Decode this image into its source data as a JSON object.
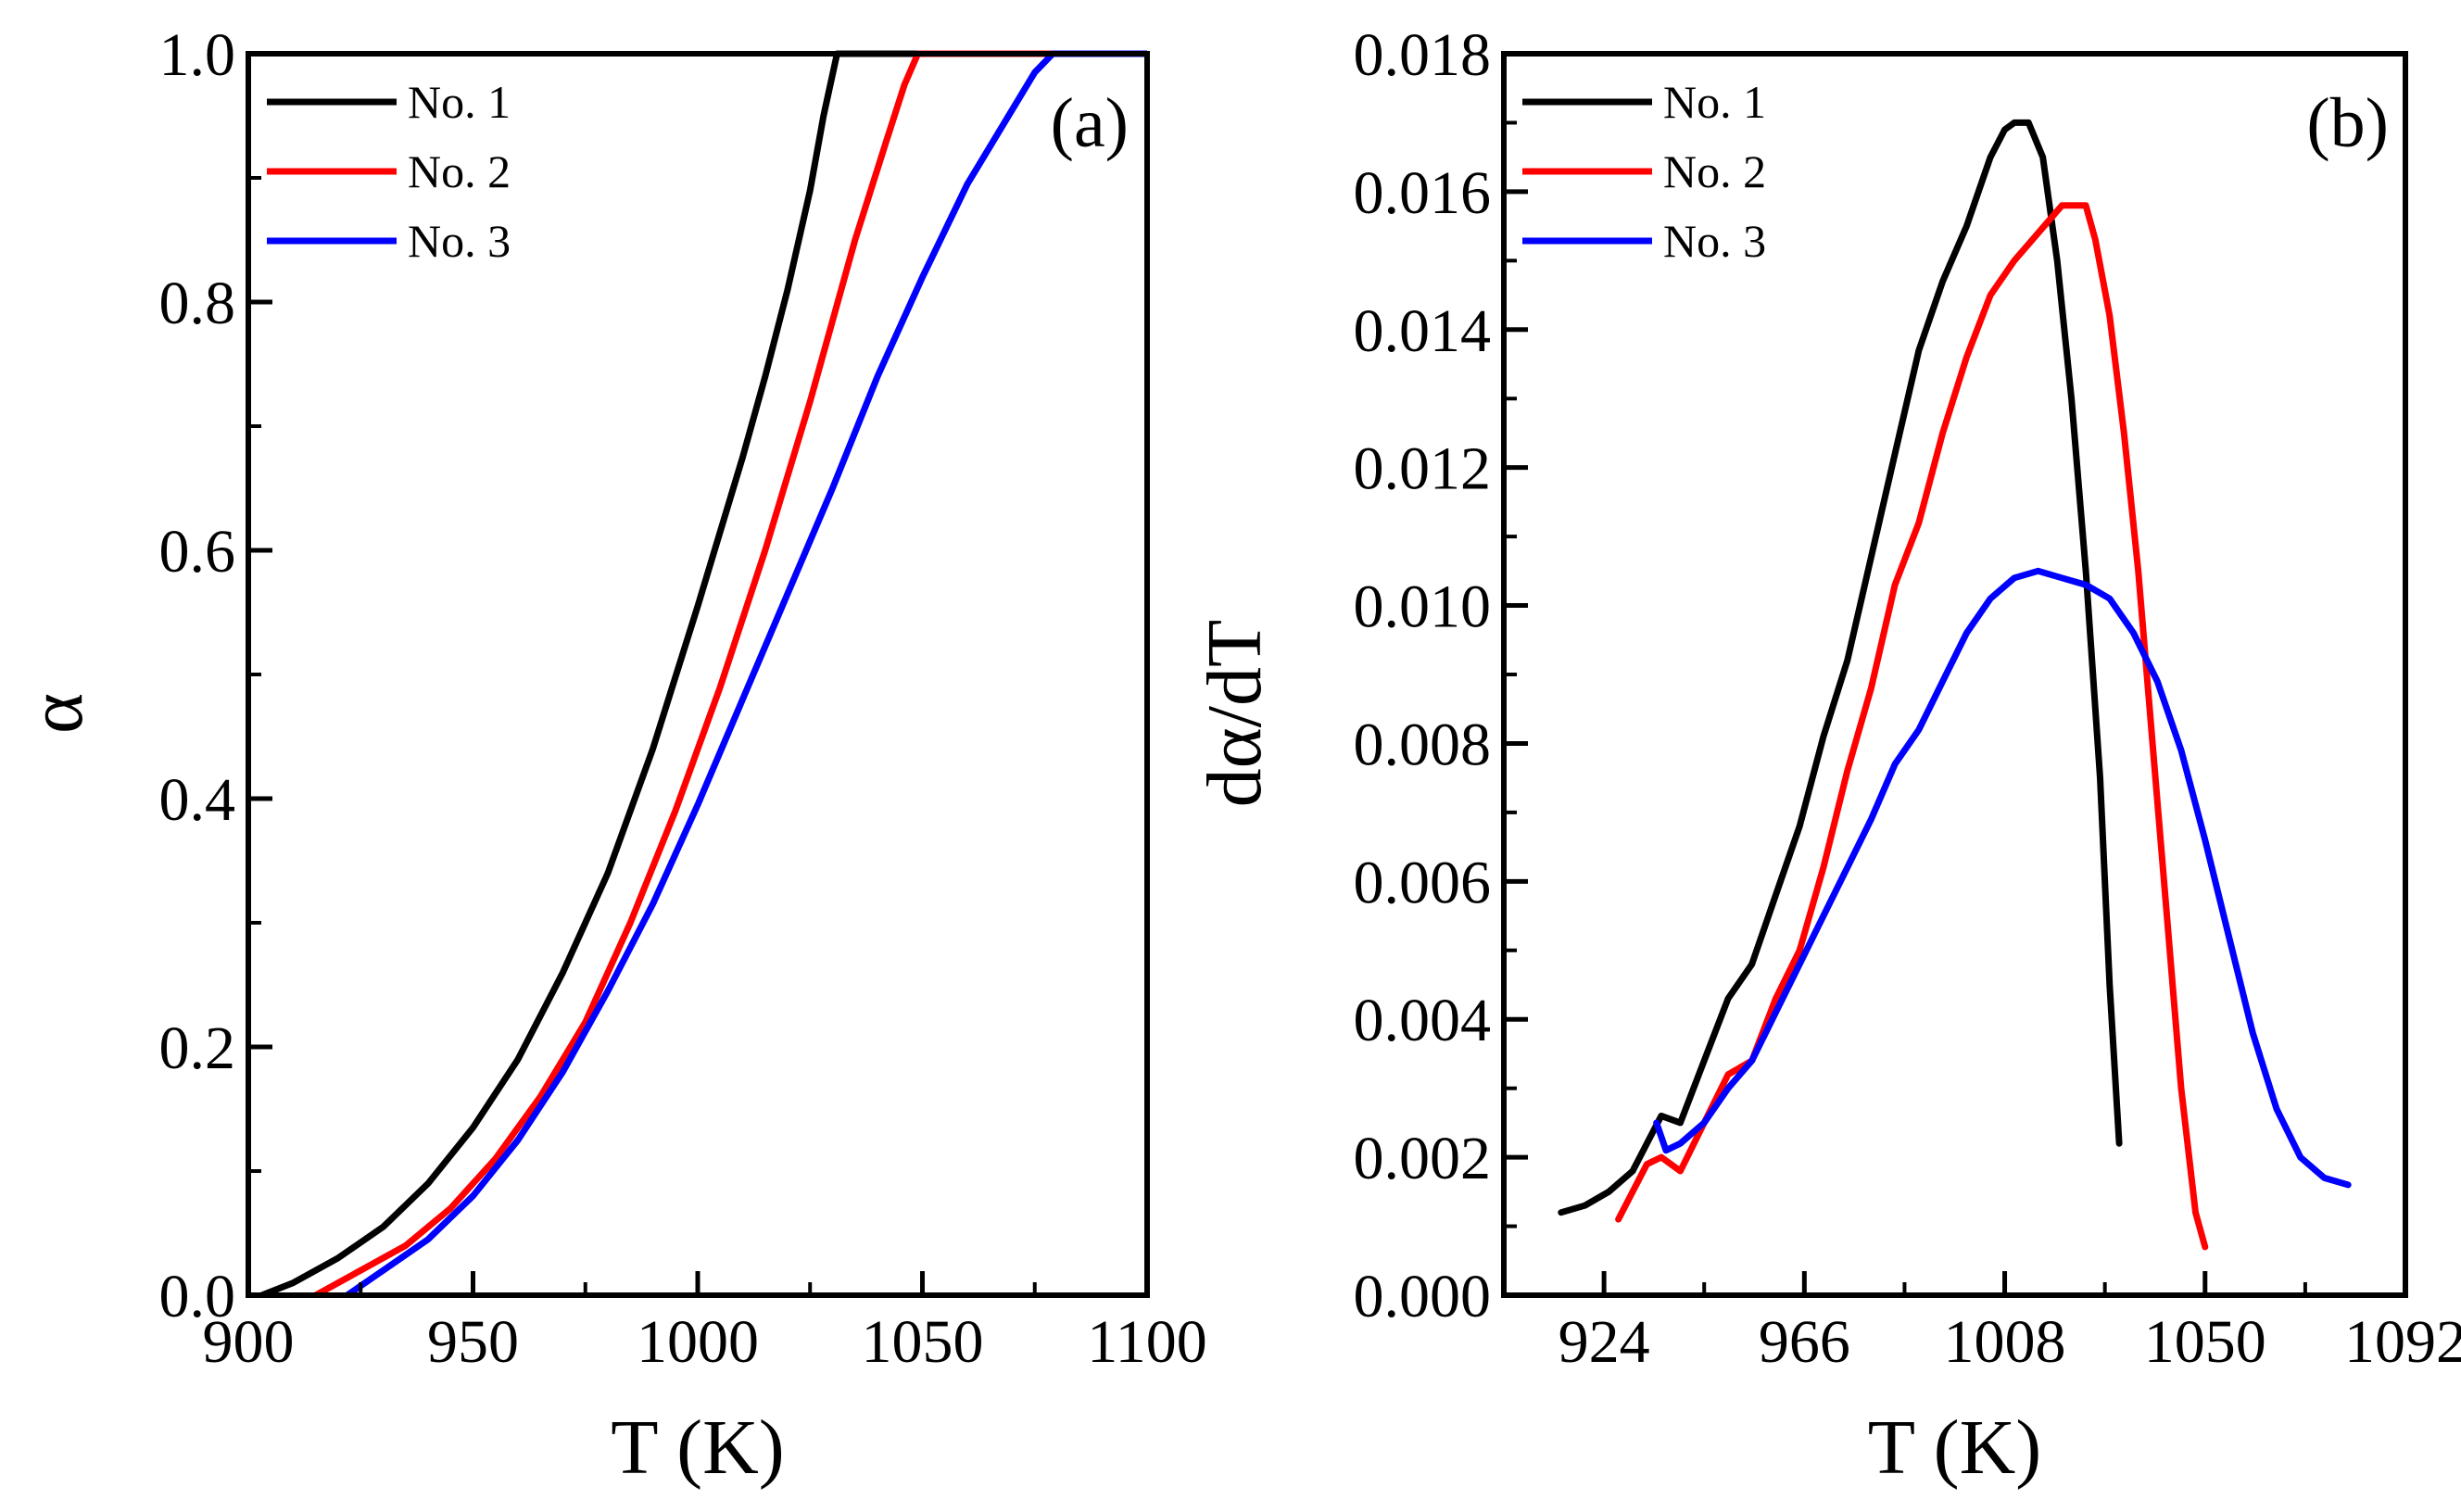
{
  "chart_data": [
    {
      "type": "line",
      "panel": "(a)",
      "xlabel": "T (K)",
      "ylabel": "α",
      "xlim": [
        900,
        1100
      ],
      "ylim": [
        0,
        1.0
      ],
      "xticks": [
        900,
        950,
        1000,
        1050,
        1100
      ],
      "xtick_labels": [
        "900",
        "950",
        "1000",
        "1050",
        "1100"
      ],
      "yticks": [
        0,
        0.2,
        0.4,
        0.6,
        0.8,
        1.0
      ],
      "ytick_labels": [
        "0.0",
        "0.2",
        "0.4",
        "0.6",
        "0.8",
        "1.0"
      ],
      "legend_position": "top-left",
      "series": [
        {
          "name": "No. 1",
          "color": "#000000",
          "x": [
            903,
            910,
            920,
            930,
            940,
            950,
            960,
            970,
            980,
            990,
            1000,
            1010,
            1015,
            1020,
            1025,
            1028,
            1031,
            1100
          ],
          "y": [
            0,
            0.01,
            0.03,
            0.055,
            0.09,
            0.135,
            0.19,
            0.26,
            0.34,
            0.44,
            0.555,
            0.675,
            0.74,
            0.81,
            0.89,
            0.95,
            1.0,
            1.0
          ]
        },
        {
          "name": "No. 2",
          "color": "#ff0000",
          "x": [
            915,
            925,
            935,
            945,
            955,
            965,
            975,
            985,
            995,
            1005,
            1015,
            1025,
            1035,
            1042,
            1046,
            1049,
            1100
          ],
          "y": [
            0,
            0.02,
            0.04,
            0.07,
            0.11,
            0.16,
            0.22,
            0.3,
            0.39,
            0.49,
            0.6,
            0.72,
            0.85,
            0.93,
            0.975,
            1.0,
            1.0
          ]
        },
        {
          "name": "No. 3",
          "color": "#0000ff",
          "x": [
            922,
            930,
            940,
            950,
            960,
            970,
            980,
            990,
            1000,
            1010,
            1020,
            1030,
            1040,
            1050,
            1060,
            1070,
            1075,
            1079,
            1100
          ],
          "y": [
            0,
            0.02,
            0.045,
            0.08,
            0.125,
            0.18,
            0.245,
            0.315,
            0.395,
            0.48,
            0.565,
            0.65,
            0.74,
            0.82,
            0.895,
            0.955,
            0.985,
            1.0,
            1.0
          ]
        }
      ]
    },
    {
      "type": "line",
      "panel": "(b)",
      "xlabel": "T (K)",
      "ylabel": "dα/dT",
      "xlim": [
        903,
        1092
      ],
      "ylim": [
        0,
        0.018
      ],
      "xticks": [
        924,
        966,
        1008,
        1050,
        1092
      ],
      "xtick_labels": [
        "924",
        "966",
        "1008",
        "1050",
        "1092"
      ],
      "yticks": [
        0,
        0.002,
        0.004,
        0.006,
        0.008,
        0.01,
        0.012,
        0.014,
        0.016,
        0.018
      ],
      "ytick_labels": [
        "0.000",
        "0.002",
        "0.004",
        "0.006",
        "0.008",
        "0.010",
        "0.012",
        "0.014",
        "0.016",
        "0.018"
      ],
      "legend_position": "top-left",
      "series": [
        {
          "name": "No. 1",
          "color": "#000000",
          "x": [
            915,
            920,
            925,
            930,
            933,
            936,
            940,
            945,
            950,
            955,
            960,
            965,
            970,
            975,
            980,
            985,
            990,
            995,
            1000,
            1005,
            1008,
            1010,
            1013,
            1016,
            1019,
            1022,
            1025,
            1028,
            1030,
            1032
          ],
          "y": [
            0.0012,
            0.0013,
            0.0015,
            0.0018,
            0.0022,
            0.0026,
            0.0025,
            0.0034,
            0.0043,
            0.0048,
            0.0058,
            0.0068,
            0.0081,
            0.0092,
            0.0107,
            0.0122,
            0.0137,
            0.0147,
            0.0155,
            0.0165,
            0.0169,
            0.017,
            0.017,
            0.0165,
            0.015,
            0.013,
            0.0105,
            0.0075,
            0.0045,
            0.0022
          ]
        },
        {
          "name": "No. 2",
          "color": "#ff0000",
          "x": [
            927,
            930,
            933,
            936,
            940,
            945,
            950,
            955,
            960,
            965,
            970,
            975,
            980,
            985,
            990,
            995,
            1000,
            1005,
            1010,
            1015,
            1020,
            1025,
            1027,
            1030,
            1033,
            1036,
            1039,
            1042,
            1045,
            1048,
            1050
          ],
          "y": [
            0.0011,
            0.0015,
            0.0019,
            0.002,
            0.0018,
            0.0025,
            0.0032,
            0.0034,
            0.0043,
            0.005,
            0.0062,
            0.0076,
            0.0088,
            0.0103,
            0.0112,
            0.0125,
            0.0136,
            0.0145,
            0.015,
            0.0154,
            0.0158,
            0.0158,
            0.0153,
            0.0142,
            0.0125,
            0.0105,
            0.008,
            0.0055,
            0.003,
            0.0012,
            0.0007
          ]
        },
        {
          "name": "No. 3",
          "color": "#0000ff",
          "x": [
            935,
            937,
            940,
            945,
            950,
            955,
            960,
            965,
            970,
            975,
            980,
            985,
            990,
            995,
            1000,
            1005,
            1010,
            1015,
            1020,
            1025,
            1030,
            1035,
            1040,
            1045,
            1050,
            1055,
            1060,
            1065,
            1070,
            1075,
            1080
          ],
          "y": [
            0.0025,
            0.0021,
            0.0022,
            0.0025,
            0.003,
            0.0034,
            0.0041,
            0.0048,
            0.0055,
            0.0062,
            0.0069,
            0.0077,
            0.0082,
            0.0089,
            0.0096,
            0.0101,
            0.0104,
            0.0105,
            0.0104,
            0.0103,
            0.0101,
            0.0096,
            0.0089,
            0.0079,
            0.0066,
            0.0052,
            0.0038,
            0.0027,
            0.002,
            0.0017,
            0.0016
          ]
        }
      ]
    }
  ]
}
